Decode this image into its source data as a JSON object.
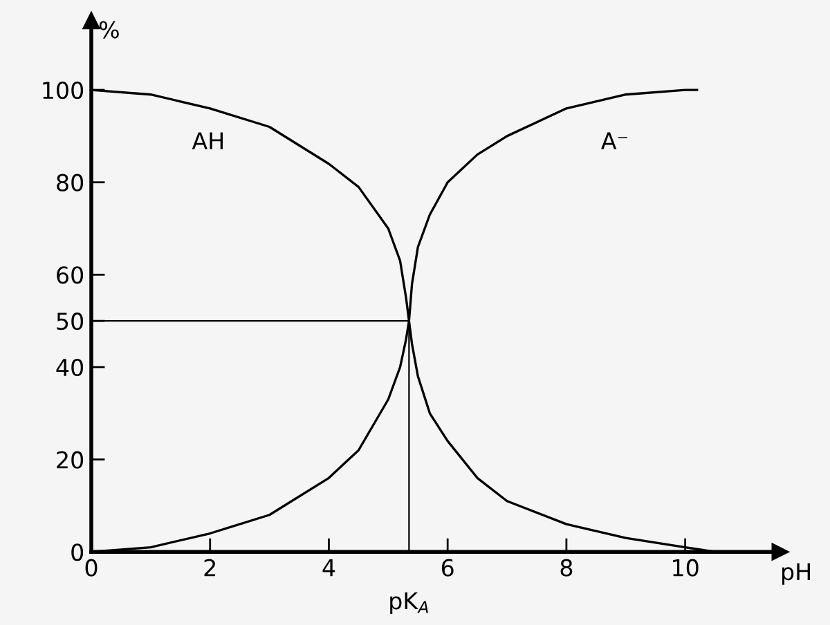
{
  "chart_data": {
    "type": "line",
    "xlabel": "pH",
    "ylabel": "%",
    "xlim": [
      0,
      11.6
    ],
    "ylim": [
      0,
      115
    ],
    "xticks": [
      0,
      2,
      4,
      6,
      8,
      10
    ],
    "yticks": [
      0,
      20,
      40,
      50,
      60,
      80,
      100
    ],
    "series": [
      {
        "color": "#000000",
        "x": [
          0,
          1,
          2,
          3,
          4,
          4.5,
          5,
          5.2,
          5.3,
          5.35,
          5.4,
          5.5,
          5.7,
          6,
          6.5,
          7,
          8,
          9,
          10,
          10.5
        ],
        "values": [
          100,
          99,
          96,
          92,
          84,
          79,
          70,
          63,
          55,
          50,
          45,
          38,
          30,
          24,
          16,
          11,
          6,
          3,
          1,
          0
        ]
      },
      {
        "color": "#000000",
        "x": [
          0,
          1,
          2,
          3,
          4,
          4.5,
          5,
          5.2,
          5.3,
          5.35,
          5.4,
          5.5,
          5.7,
          6,
          6.5,
          7,
          8,
          9,
          10,
          10.2
        ],
        "values": [
          0,
          1,
          4,
          8,
          16,
          22,
          33,
          40,
          46,
          50,
          58,
          66,
          73,
          80,
          86,
          90,
          96,
          99,
          100,
          100
        ]
      }
    ],
    "ref_lines": [
      {
        "axis": "x",
        "value": 5.35,
        "label": "pK$_{A}$",
        "color": "#000000"
      },
      {
        "axis": "y",
        "value": 50,
        "color": "#000000"
      }
    ],
    "annotations": [
      "AH",
      "A⁻"
    ],
    "grid": false,
    "legend": false,
    "marker": "none",
    "line_style": "solid"
  }
}
